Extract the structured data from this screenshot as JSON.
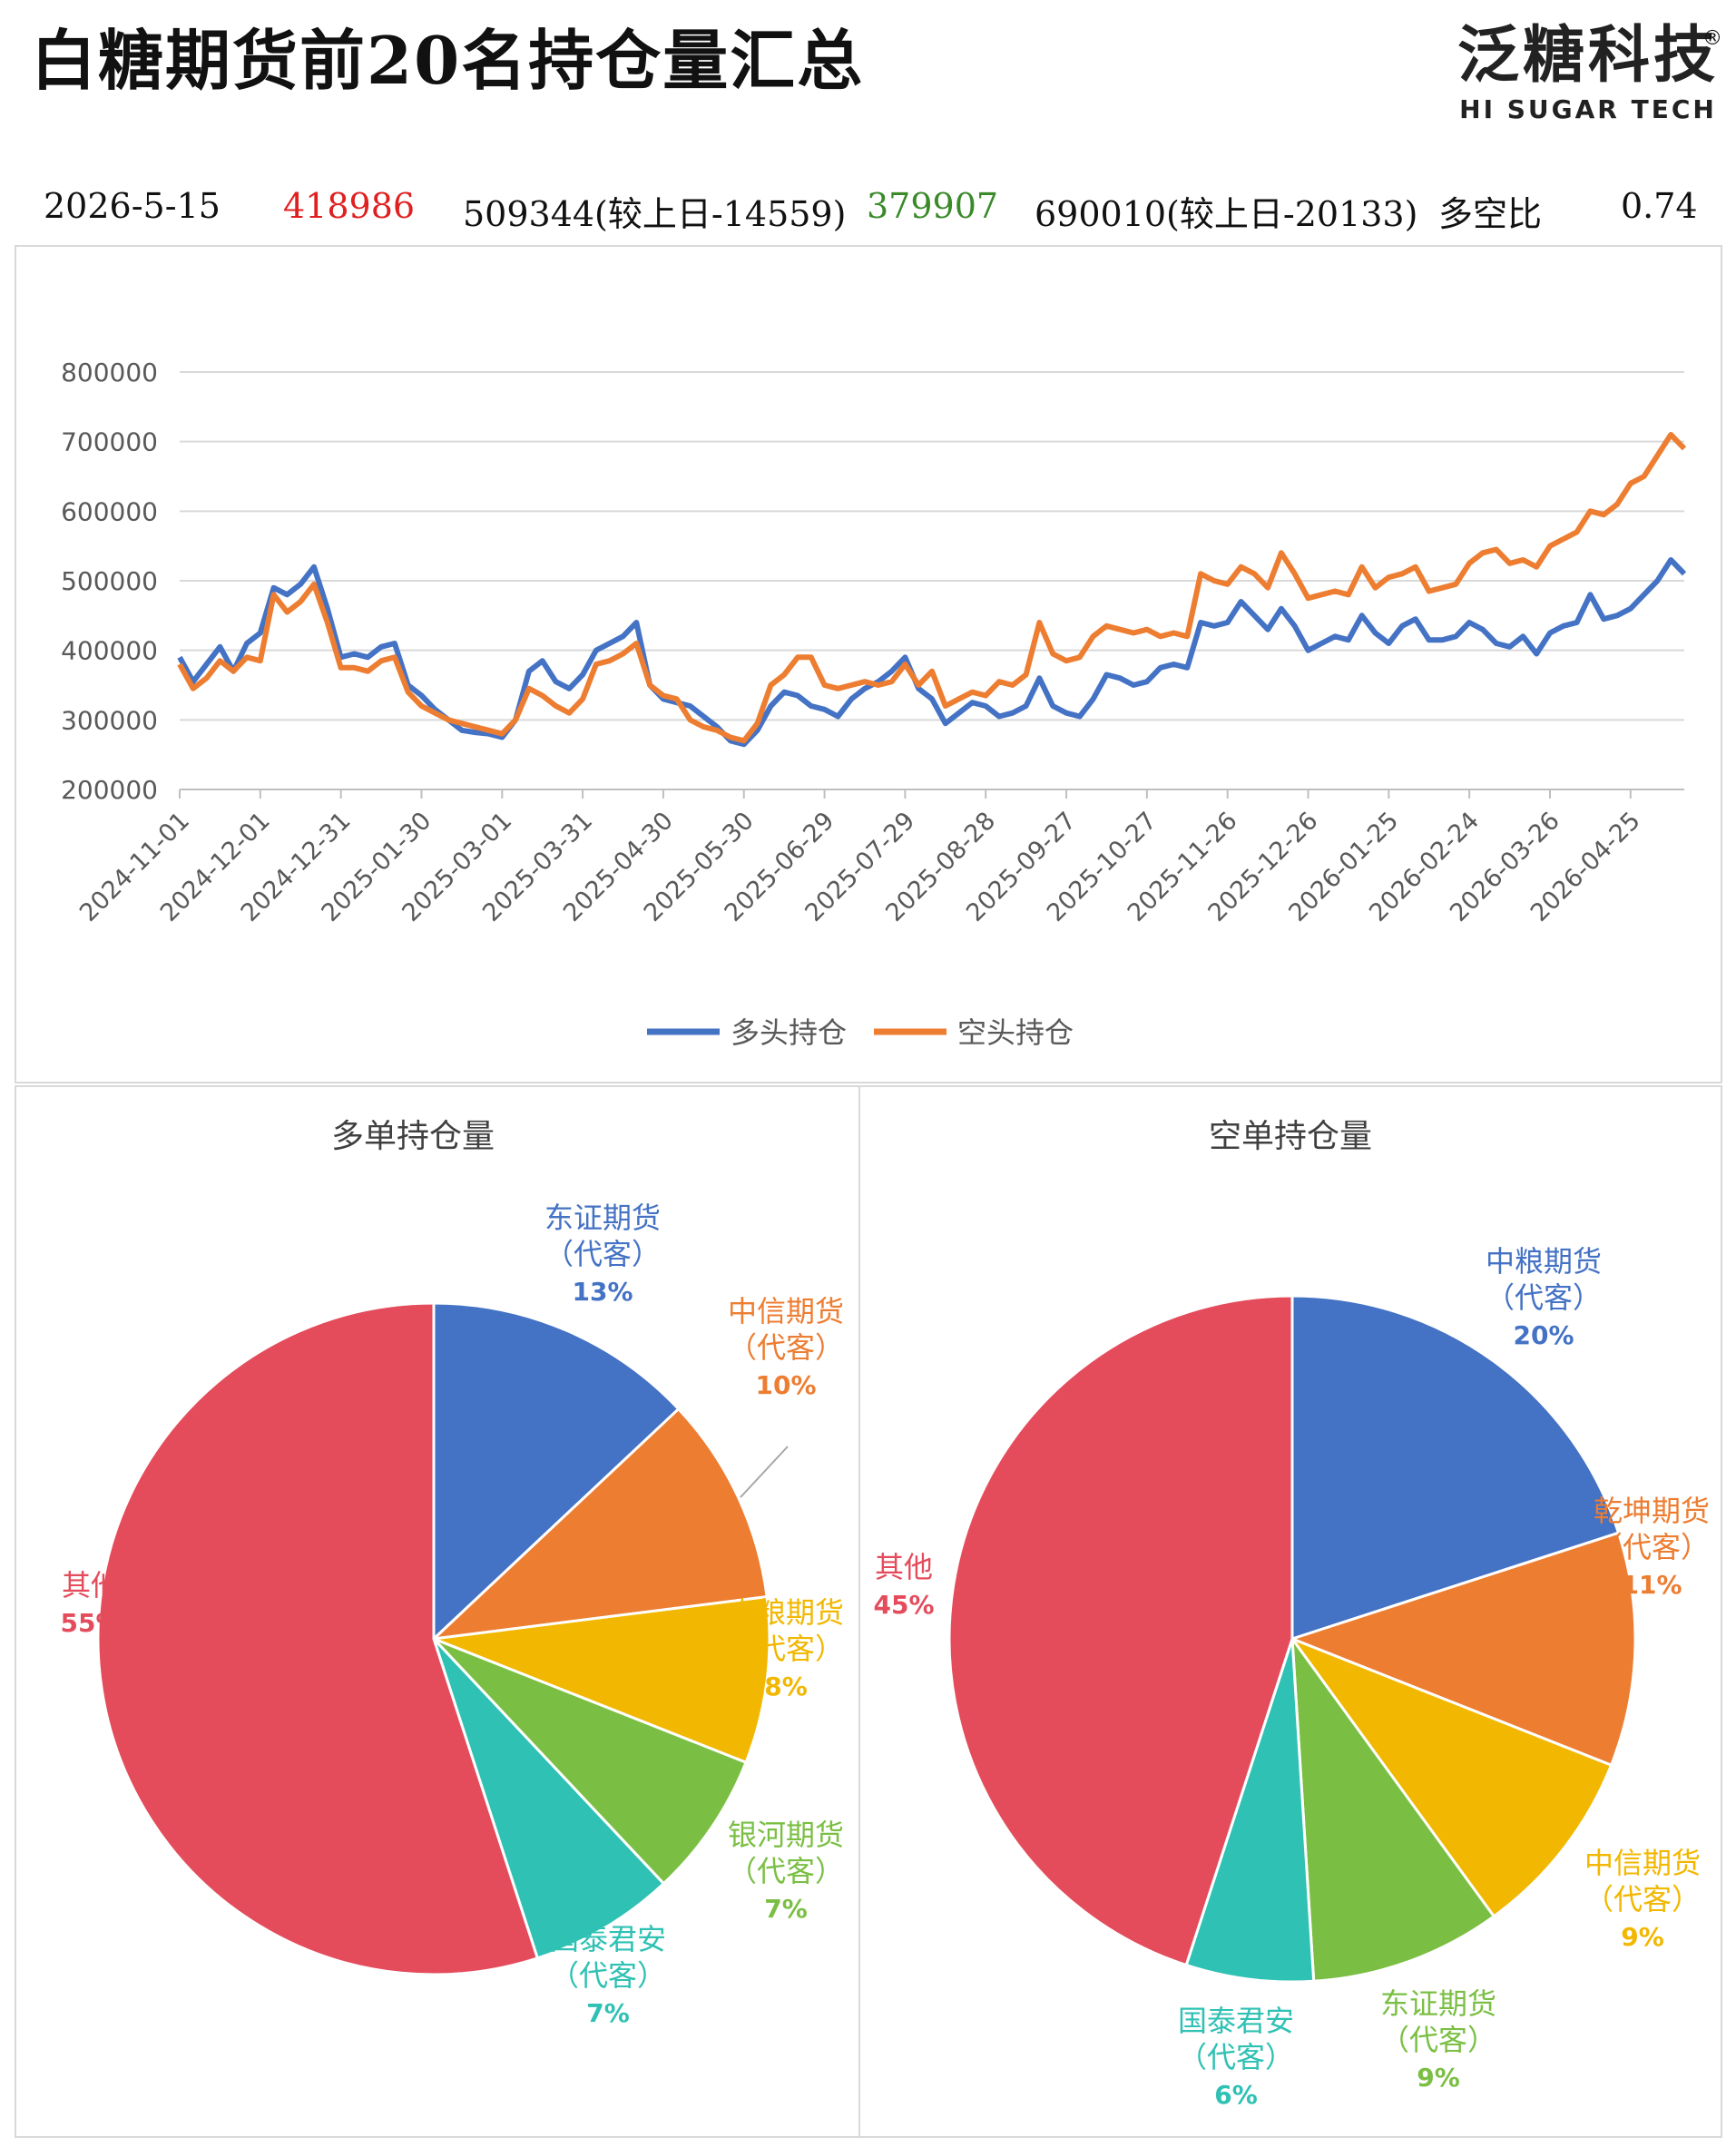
{
  "header": {
    "title": "白糖期货前20名持仓量汇总",
    "logo_cn": "泛糖科技",
    "logo_en": "HI SUGAR TECH",
    "logo_mark": "®"
  },
  "summary": {
    "date": "2026-5-15",
    "long_value": "418986",
    "long_total": "509344(较上日-14559)",
    "short_value": "379907",
    "short_total": "690010(较上日-20133)",
    "ratio_label": "多空比",
    "ratio_value": "0.74",
    "colors": {
      "long": "#e02020",
      "short": "#3a8a2a"
    }
  },
  "chart_data": [
    {
      "type": "line",
      "title": "",
      "xlabel": "",
      "ylabel": "",
      "ylim": [
        200000,
        800000
      ],
      "yticks": [
        "800000",
        "700000",
        "600000",
        "500000",
        "400000",
        "300000",
        "200000"
      ],
      "xticks": [
        "2024-11-01",
        "2024-12-01",
        "2024-12-31",
        "2025-01-30",
        "2025-03-01",
        "2025-03-31",
        "2025-04-30",
        "2025-05-30",
        "2025-06-29",
        "2025-07-29",
        "2025-08-28",
        "2025-09-27",
        "2025-10-27",
        "2025-11-26",
        "2025-12-26",
        "2026-01-25",
        "2026-02-24",
        "2026-03-26",
        "2026-04-25"
      ],
      "grid": true,
      "legend": "bottom",
      "x": [
        "2024-11-01",
        "2024-11-06",
        "2024-11-11",
        "2024-11-16",
        "2024-11-21",
        "2024-11-26",
        "2024-12-01",
        "2024-12-06",
        "2024-12-11",
        "2024-12-16",
        "2024-12-21",
        "2024-12-26",
        "2024-12-31",
        "2025-01-05",
        "2025-01-10",
        "2025-01-15",
        "2025-01-20",
        "2025-01-25",
        "2025-01-30",
        "2025-02-04",
        "2025-02-09",
        "2025-02-14",
        "2025-02-19",
        "2025-02-24",
        "2025-03-01",
        "2025-03-06",
        "2025-03-11",
        "2025-03-16",
        "2025-03-21",
        "2025-03-26",
        "2025-03-31",
        "2025-04-05",
        "2025-04-10",
        "2025-04-15",
        "2025-04-20",
        "2025-04-25",
        "2025-04-30",
        "2025-05-05",
        "2025-05-10",
        "2025-05-15",
        "2025-05-20",
        "2025-05-25",
        "2025-05-30",
        "2025-06-04",
        "2025-06-09",
        "2025-06-14",
        "2025-06-19",
        "2025-06-24",
        "2025-06-29",
        "2025-07-04",
        "2025-07-09",
        "2025-07-14",
        "2025-07-19",
        "2025-07-24",
        "2025-07-29",
        "2025-08-03",
        "2025-08-08",
        "2025-08-13",
        "2025-08-18",
        "2025-08-23",
        "2025-08-28",
        "2025-09-02",
        "2025-09-07",
        "2025-09-12",
        "2025-09-17",
        "2025-09-22",
        "2025-09-27",
        "2025-10-02",
        "2025-10-07",
        "2025-10-12",
        "2025-10-17",
        "2025-10-22",
        "2025-10-27",
        "2025-11-01",
        "2025-11-06",
        "2025-11-11",
        "2025-11-16",
        "2025-11-21",
        "2025-11-26",
        "2025-12-01",
        "2025-12-06",
        "2025-12-11",
        "2025-12-16",
        "2025-12-21",
        "2025-12-26",
        "2025-12-31",
        "2026-01-05",
        "2026-01-10",
        "2026-01-15",
        "2026-01-20",
        "2026-01-25",
        "2026-01-30",
        "2026-02-04",
        "2026-02-09",
        "2026-02-14",
        "2026-02-19",
        "2026-02-24",
        "2026-03-01",
        "2026-03-06",
        "2026-03-11",
        "2026-03-16",
        "2026-03-21",
        "2026-03-26",
        "2026-03-31",
        "2026-04-05",
        "2026-04-10",
        "2026-04-15",
        "2026-04-20",
        "2026-04-25",
        "2026-04-30",
        "2026-05-05",
        "2026-05-10",
        "2026-05-15"
      ],
      "series": [
        {
          "name": "多头持仓",
          "color": "#4472c4",
          "values": [
            390000,
            355000,
            380000,
            405000,
            370000,
            410000,
            425000,
            490000,
            480000,
            495000,
            520000,
            460000,
            390000,
            395000,
            390000,
            405000,
            410000,
            350000,
            335000,
            315000,
            300000,
            285000,
            282000,
            280000,
            275000,
            300000,
            370000,
            385000,
            355000,
            345000,
            365000,
            400000,
            410000,
            420000,
            440000,
            350000,
            330000,
            325000,
            320000,
            305000,
            290000,
            270000,
            265000,
            285000,
            320000,
            340000,
            335000,
            320000,
            315000,
            305000,
            330000,
            345000,
            355000,
            370000,
            390000,
            345000,
            330000,
            295000,
            310000,
            325000,
            320000,
            305000,
            310000,
            320000,
            360000,
            320000,
            310000,
            305000,
            330000,
            365000,
            360000,
            350000,
            355000,
            375000,
            380000,
            375000,
            440000,
            435000,
            440000,
            470000,
            450000,
            430000,
            460000,
            435000,
            400000,
            410000,
            420000,
            415000,
            450000,
            425000,
            410000,
            435000,
            445000,
            415000,
            415000,
            420000,
            440000,
            430000,
            410000,
            405000,
            420000,
            395000,
            425000,
            435000,
            440000,
            480000,
            445000,
            450000,
            460000,
            480000,
            500000,
            530000,
            510000
          ]
        },
        {
          "name": "空头持仓",
          "color": "#ed7d31",
          "values": [
            380000,
            345000,
            360000,
            385000,
            370000,
            390000,
            385000,
            480000,
            455000,
            470000,
            495000,
            440000,
            375000,
            375000,
            370000,
            385000,
            390000,
            340000,
            320000,
            310000,
            300000,
            295000,
            290000,
            285000,
            280000,
            300000,
            345000,
            335000,
            320000,
            310000,
            330000,
            380000,
            385000,
            395000,
            410000,
            350000,
            335000,
            330000,
            300000,
            290000,
            285000,
            275000,
            270000,
            295000,
            350000,
            365000,
            390000,
            390000,
            350000,
            345000,
            350000,
            355000,
            350000,
            355000,
            380000,
            350000,
            370000,
            320000,
            330000,
            340000,
            335000,
            355000,
            350000,
            365000,
            440000,
            395000,
            385000,
            390000,
            420000,
            435000,
            430000,
            425000,
            430000,
            420000,
            425000,
            420000,
            510000,
            500000,
            495000,
            520000,
            510000,
            490000,
            540000,
            510000,
            475000,
            480000,
            485000,
            480000,
            520000,
            490000,
            505000,
            510000,
            520000,
            485000,
            490000,
            495000,
            525000,
            540000,
            545000,
            525000,
            530000,
            520000,
            550000,
            560000,
            570000,
            600000,
            595000,
            610000,
            640000,
            650000,
            680000,
            710000,
            690000
          ]
        }
      ]
    },
    {
      "type": "pie",
      "title": "多单持仓量",
      "slices": [
        {
          "label": "东证期货",
          "sub": "（代客）",
          "pct_label": "13%",
          "value": 13,
          "color": "#4472c4"
        },
        {
          "label": "中信期货",
          "sub": "（代客）",
          "pct_label": "10%",
          "value": 10,
          "color": "#ed7d31"
        },
        {
          "label": "中粮期货",
          "sub": "（代客）",
          "pct_label": "8%",
          "value": 8,
          "color": "#f2b700"
        },
        {
          "label": "银河期货",
          "sub": "（代客）",
          "pct_label": "7%",
          "value": 7,
          "color": "#7abf43"
        },
        {
          "label": "国泰君安",
          "sub": "（代客）",
          "pct_label": "7%",
          "value": 7,
          "color": "#2fc1b4"
        },
        {
          "label": "其他",
          "sub": "",
          "pct_label": "55%",
          "value": 55,
          "color": "#e44c5c"
        }
      ]
    },
    {
      "type": "pie",
      "title": "空单持仓量",
      "slices": [
        {
          "label": "中粮期货",
          "sub": "（代客）",
          "pct_label": "20%",
          "value": 20,
          "color": "#4472c4"
        },
        {
          "label": "乾坤期货",
          "sub": "（代客）",
          "pct_label": "11%",
          "value": 11,
          "color": "#ed7d31"
        },
        {
          "label": "中信期货",
          "sub": "（代客）",
          "pct_label": "9%",
          "value": 9,
          "color": "#f2b700"
        },
        {
          "label": "东证期货",
          "sub": "（代客）",
          "pct_label": "9%",
          "value": 9,
          "color": "#7abf43"
        },
        {
          "label": "国泰君安",
          "sub": "（代客）",
          "pct_label": "6%",
          "value": 6,
          "color": "#2fc1b4"
        },
        {
          "label": "其他",
          "sub": "",
          "pct_label": "45%",
          "value": 45,
          "color": "#e44c5c"
        }
      ]
    }
  ]
}
